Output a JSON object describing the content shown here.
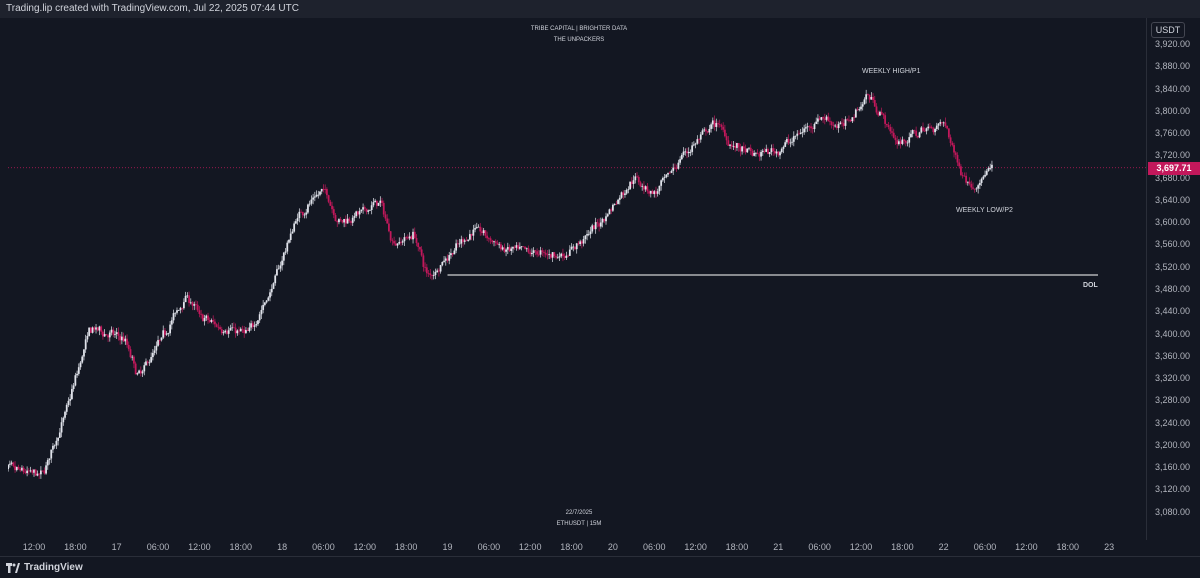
{
  "header": {
    "title": "Trading.lip created with TradingView.com, Jul 22, 2025 07:44 UTC"
  },
  "watermark": {
    "line1": "TRIBE CAPITAL  |  BRIGHTER DATA",
    "line2": "THE UNPACKERS"
  },
  "footer_note": {
    "date": "22/7/2025",
    "symbol": "ETHUSDT  |  15M"
  },
  "currency_button": "USDT",
  "brand": "TradingView",
  "colors": {
    "background": "#131722",
    "up": "#e0e3eb",
    "down": "#c2185b",
    "current_price": "#c2185b",
    "level_line": "#ffffff"
  },
  "annotations": {
    "high": "WEEKLY HIGH/P1",
    "low": "WEEKLY LOW/P2",
    "dol": "DOL"
  },
  "price_axis": {
    "ticks": [
      "3,920.00",
      "3,880.00",
      "3,840.00",
      "3,800.00",
      "3,760.00",
      "3,720.00",
      "3,680.00",
      "3,640.00",
      "3,600.00",
      "3,560.00",
      "3,520.00",
      "3,480.00",
      "3,440.00",
      "3,400.00",
      "3,360.00",
      "3,320.00",
      "3,280.00",
      "3,240.00",
      "3,200.00",
      "3,160.00",
      "3,120.00",
      "3,080.00"
    ],
    "current_label": "3,697.71"
  },
  "time_axis": {
    "ticks": [
      "12:00",
      "18:00",
      "17",
      "06:00",
      "12:00",
      "18:00",
      "18",
      "06:00",
      "12:00",
      "18:00",
      "19",
      "06:00",
      "12:00",
      "18:00",
      "20",
      "06:00",
      "12:00",
      "18:00",
      "21",
      "06:00",
      "12:00",
      "18:00",
      "22",
      "06:00",
      "12:00",
      "18:00",
      "23"
    ]
  },
  "chart_data": {
    "type": "candlestick",
    "symbol": "ETHUSDT",
    "interval": "15M",
    "ylim": [
      3060,
      3940
    ],
    "current_price": 3697.71,
    "dol_level": 3505,
    "x_range": [
      "16 Jul 07:00",
      "23 Jul 06:00"
    ],
    "waypoints": [
      {
        "t": "16 Jul 07:00",
        "p": 3160
      },
      {
        "t": "16 Jul 13:00",
        "p": 3145
      },
      {
        "t": "16 Jul 16:00",
        "p": 3240
      },
      {
        "t": "16 Jul 20:00",
        "p": 3410
      },
      {
        "t": "17 Jul 01:00",
        "p": 3390
      },
      {
        "t": "17 Jul 03:00",
        "p": 3320
      },
      {
        "t": "17 Jul 10:00",
        "p": 3470
      },
      {
        "t": "17 Jul 12:00",
        "p": 3430
      },
      {
        "t": "17 Jul 15:00",
        "p": 3410
      },
      {
        "t": "17 Jul 19:00",
        "p": 3400
      },
      {
        "t": "17 Jul 22:00",
        "p": 3470
      },
      {
        "t": "18 Jul 02:00",
        "p": 3610
      },
      {
        "t": "18 Jul 06:00",
        "p": 3660
      },
      {
        "t": "18 Jul 08:00",
        "p": 3600
      },
      {
        "t": "18 Jul 12:00",
        "p": 3620
      },
      {
        "t": "18 Jul 14:00",
        "p": 3640
      },
      {
        "t": "18 Jul 16:00",
        "p": 3560
      },
      {
        "t": "18 Jul 19:00",
        "p": 3580
      },
      {
        "t": "18 Jul 21:00",
        "p": 3500
      },
      {
        "t": "19 Jul 00:00",
        "p": 3540
      },
      {
        "t": "19 Jul 04:00",
        "p": 3590
      },
      {
        "t": "19 Jul 08:00",
        "p": 3550
      },
      {
        "t": "19 Jul 13:00",
        "p": 3545
      },
      {
        "t": "19 Jul 17:00",
        "p": 3540
      },
      {
        "t": "19 Jul 22:00",
        "p": 3600
      },
      {
        "t": "20 Jul 03:00",
        "p": 3680
      },
      {
        "t": "20 Jul 06:00",
        "p": 3650
      },
      {
        "t": "20 Jul 10:00",
        "p": 3720
      },
      {
        "t": "20 Jul 15:00",
        "p": 3780
      },
      {
        "t": "20 Jul 17:00",
        "p": 3740
      },
      {
        "t": "20 Jul 20:00",
        "p": 3720
      },
      {
        "t": "21 Jul 00:00",
        "p": 3730
      },
      {
        "t": "21 Jul 03:00",
        "p": 3760
      },
      {
        "t": "21 Jul 06:00",
        "p": 3790
      },
      {
        "t": "21 Jul 09:00",
        "p": 3770
      },
      {
        "t": "21 Jul 13:00",
        "p": 3830
      },
      {
        "t": "21 Jul 15:00",
        "p": 3790
      },
      {
        "t": "21 Jul 17:00",
        "p": 3740
      },
      {
        "t": "21 Jul 20:00",
        "p": 3760
      },
      {
        "t": "22 Jul 00:00",
        "p": 3780
      },
      {
        "t": "22 Jul 02:00",
        "p": 3700
      },
      {
        "t": "22 Jul 04:00",
        "p": 3660
      },
      {
        "t": "22 Jul 07:00",
        "p": 3700
      }
    ]
  }
}
